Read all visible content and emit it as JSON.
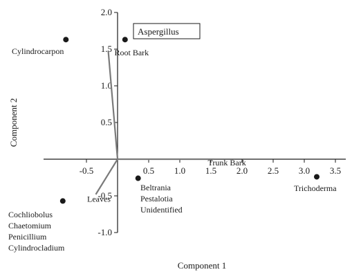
{
  "chart_data": {
    "type": "scatter",
    "xlabel": "Component 1",
    "ylabel": "Component 2",
    "xlim": [
      -1.0,
      4.0
    ],
    "ylim": [
      -1.0,
      2.0
    ],
    "x_ticks": [
      "-0.5",
      "0.5",
      "1.0",
      "1.5",
      "2.0",
      "2.5",
      "3.0",
      "3.5"
    ],
    "x_tick_values": [
      -0.5,
      0.5,
      1.0,
      1.5,
      2.0,
      2.5,
      3.0,
      3.5
    ],
    "y_ticks": [
      "-1.0",
      "-0.5",
      "0.5",
      "1.0",
      "1.5",
      "2.0"
    ],
    "y_tick_values": [
      -1.0,
      -0.5,
      0.5,
      1.0,
      1.5,
      2.0
    ],
    "points": [
      {
        "label": "Cylindrocarpon",
        "x": -0.83,
        "y": 1.63
      },
      {
        "label": "Aspergillus",
        "x": 0.12,
        "y": 1.63,
        "boxed": true
      },
      {
        "label": "Trichoderma",
        "x": 3.2,
        "y": -0.24
      },
      {
        "label": "Beltrania\nPestalotia\nUnidentified",
        "x": 0.33,
        "y": -0.26
      },
      {
        "label": "Cochliobolus\nChaetomium\nPenicillium\nCylindrocladium",
        "x": -0.88,
        "y": -0.57
      }
    ],
    "vectors": [
      {
        "label": "Root Bark",
        "x": -0.15,
        "y": 1.48
      },
      {
        "label": "Trunk Bark",
        "x": 1.55,
        "y": 0.0
      },
      {
        "label": "Leaves",
        "x": -0.35,
        "y": -0.48
      }
    ],
    "color": "#1a1a1a"
  }
}
